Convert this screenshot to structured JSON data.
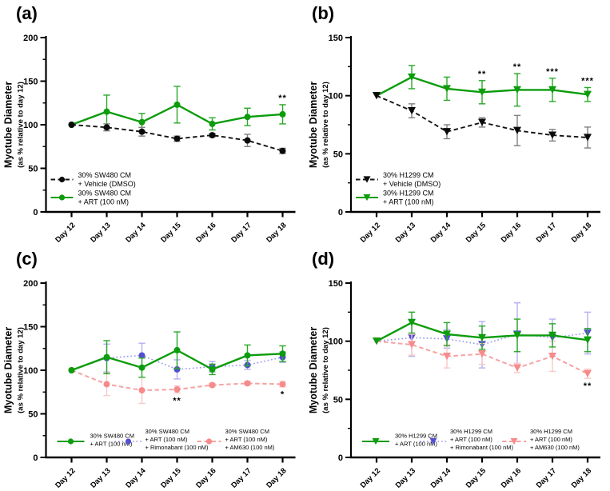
{
  "chart_data": [
    {
      "type": "line",
      "panel_label": "(a)",
      "ylabel": "Myotube Diameter",
      "ylabel_sub": "(as % relative to day 12)",
      "xlabel": "",
      "ylim": [
        0,
        200
      ],
      "yticks": [
        0,
        50,
        100,
        150,
        200
      ],
      "minor_tick_step": 25,
      "grid": false,
      "categories": [
        "Day 12",
        "Day 13",
        "Day 14",
        "Day 15",
        "Day 16",
        "Day 17",
        "Day 18"
      ],
      "legend_position": "bottom-left-stacked",
      "series": [
        {
          "name": "30% SW480 CM + Vehicle (DMSO)",
          "legend_lines": [
            "30% SW480 CM",
            "+ Vehicle (DMSO)"
          ],
          "marker": "circle",
          "line_style": "dashed",
          "color": "#0a0a0a",
          "line_color": "#141414",
          "err_color": "#7f7f7f",
          "line_width": 1.9,
          "z": 2,
          "values": [
            100,
            97,
            92,
            84,
            88,
            82,
            70
          ],
          "errors": [
            0,
            4,
            5,
            3,
            2,
            7,
            3
          ]
        },
        {
          "name": "30% SW480 CM + ART (100 nM)",
          "legend_lines": [
            "30% SW480 CM",
            "+ ART (100 nM)"
          ],
          "marker": "circle",
          "line_style": "solid",
          "color": "#0c9c0c",
          "line_color": "#0c9c0c",
          "err_color": "#2aa82a",
          "line_width": 2.4,
          "z": 1,
          "values": [
            100,
            115,
            103,
            123,
            101,
            109,
            112
          ],
          "errors": [
            0,
            19,
            10,
            21,
            7,
            10,
            11
          ]
        }
      ],
      "significance": [
        {
          "series": 1,
          "point": 6,
          "text": "**",
          "placement": "above"
        }
      ]
    },
    {
      "type": "line",
      "panel_label": "(b)",
      "ylabel": "Myotube Diameter",
      "ylabel_sub": "(as % relative to day 12)",
      "xlabel": "",
      "ylim": [
        0,
        150
      ],
      "yticks": [
        0,
        50,
        100,
        150
      ],
      "minor_tick_step": 25,
      "grid": false,
      "categories": [
        "Day 12",
        "Day 13",
        "Day 14",
        "Day 15",
        "Day 16",
        "Day 17",
        "Day 18"
      ],
      "legend_position": "bottom-left-stacked",
      "series": [
        {
          "name": "30% H1299 CM + Vehicle (DMSO)",
          "legend_lines": [
            "30% H1299 CM",
            "+ Vehicle (DMSO)"
          ],
          "marker": "triangle-down",
          "line_style": "dashed",
          "color": "#0a0a0a",
          "line_color": "#141414",
          "err_color": "#7f7f7f",
          "line_width": 1.9,
          "z": 2,
          "values": [
            100,
            87,
            69,
            77,
            70,
            66,
            64
          ],
          "errors": [
            0,
            6,
            6,
            4,
            13,
            5,
            9
          ]
        },
        {
          "name": "30% H1299 CM + ART (100 nM)",
          "legend_lines": [
            "30% H1299 CM",
            "+ ART (100 nM)"
          ],
          "marker": "triangle-down",
          "line_style": "solid",
          "color": "#0c9c0c",
          "line_color": "#0c9c0c",
          "err_color": "#2aa82a",
          "line_width": 2.4,
          "z": 1,
          "values": [
            100,
            116,
            106,
            103,
            105,
            105,
            101
          ],
          "errors": [
            0,
            10,
            10,
            10,
            14,
            10,
            6
          ]
        }
      ],
      "significance": [
        {
          "series": 1,
          "point": 3,
          "text": "**",
          "placement": "above"
        },
        {
          "series": 1,
          "point": 4,
          "text": "**",
          "placement": "above"
        },
        {
          "series": 1,
          "point": 5,
          "text": "***",
          "placement": "above"
        },
        {
          "series": 1,
          "point": 6,
          "text": "***",
          "placement": "above"
        }
      ]
    },
    {
      "type": "line",
      "panel_label": "(c)",
      "ylabel": "Myotube Diameter",
      "ylabel_sub": "(as % relative to day 12)",
      "xlabel": "",
      "ylim": [
        0,
        200
      ],
      "yticks": [
        0,
        50,
        100,
        150,
        200
      ],
      "minor_tick_step": 25,
      "grid": false,
      "categories": [
        "Day 12",
        "Day 13",
        "Day 14",
        "Day 15",
        "Day 16",
        "Day 17",
        "Day 18"
      ],
      "legend_position": "bottom-row",
      "series": [
        {
          "name": "30% SW480 CM + ART (100 nM)",
          "legend_lines": [
            "30% SW480 CM",
            "+ ART (100 nM)"
          ],
          "marker": "circle",
          "line_style": "solid",
          "color": "#0c9c0c",
          "line_color": "#0c9c0c",
          "err_color": "#2aa82a",
          "line_width": 2.4,
          "z": 3,
          "values": [
            100,
            115,
            103,
            123,
            101,
            117,
            119
          ],
          "errors": [
            0,
            19,
            11,
            21,
            6,
            12,
            9
          ]
        },
        {
          "name": "30% SW480 CM + ART (100 nM) + Rimonabant (100 nM)",
          "legend_lines": [
            "30% SW480 CM",
            "+ ART (100 nM)",
            "+ Rimonabant (100 nM)"
          ],
          "marker": "circle",
          "line_style": "dotted",
          "color": "#524fd2",
          "line_color": "#9a97ee",
          "err_color": "#b3b0f3",
          "line_width": 1.6,
          "z": 1,
          "values": [
            100,
            114,
            117,
            101,
            104,
            106,
            115
          ],
          "errors": [
            0,
            16,
            14,
            11,
            6,
            5,
            6
          ]
        },
        {
          "name": "30% SW480 CM + ART (100 nM) + AM630 (100 nM)",
          "legend_lines": [
            "30% SW480 CM",
            "+ ART (100 nM)",
            "+ AM630 (100 nM)"
          ],
          "marker": "circle",
          "line_style": "dashed",
          "color": "#f78a8a",
          "line_color": "#f6a2a2",
          "err_color": "#f9c8c8",
          "line_width": 2.0,
          "z": 2,
          "values": [
            100,
            84,
            77,
            78,
            83,
            85,
            84
          ],
          "errors": [
            0,
            13,
            15,
            4,
            2,
            2,
            3
          ]
        }
      ],
      "significance": [
        {
          "series": 2,
          "point": 3,
          "text": "**",
          "placement": "below"
        },
        {
          "series": 2,
          "point": 6,
          "text": "*",
          "placement": "below"
        }
      ]
    },
    {
      "type": "line",
      "panel_label": "(d)",
      "ylabel": "Myotube Diameter",
      "ylabel_sub": "(as % relative to day 12)",
      "xlabel": "",
      "ylim": [
        0,
        150
      ],
      "yticks": [
        0,
        50,
        100,
        150
      ],
      "minor_tick_step": 25,
      "grid": false,
      "categories": [
        "Day 12",
        "Day 13",
        "Day 14",
        "Day 15",
        "Day 16",
        "Day 17",
        "Day 18"
      ],
      "legend_position": "bottom-row",
      "series": [
        {
          "name": "30% H1299 CM + ART (100 nM)",
          "legend_lines": [
            "30% H1299 CM",
            "+ ART (100 nM)"
          ],
          "marker": "triangle-down",
          "line_style": "solid",
          "color": "#0c9c0c",
          "line_color": "#0c9c0c",
          "err_color": "#2aa82a",
          "line_width": 2.4,
          "z": 3,
          "values": [
            100,
            116,
            106,
            103,
            105,
            105,
            101
          ],
          "errors": [
            0,
            9,
            10,
            10,
            14,
            10,
            10
          ]
        },
        {
          "name": "30% H1299 CM + ART (100 nM) + Rimonabant (100 nM)",
          "legend_lines": [
            "30% H1299 CM",
            "+ ART (100 nM)",
            "+ Rimonabant (100 nM)"
          ],
          "marker": "triangle-down",
          "line_style": "dotted",
          "color": "#524fd2",
          "line_color": "#9a97ee",
          "err_color": "#b3b0f3",
          "line_width": 1.6,
          "z": 1,
          "values": [
            100,
            103,
            102,
            97,
            106,
            103,
            107
          ],
          "errors": [
            0,
            16,
            8,
            20,
            27,
            16,
            18
          ]
        },
        {
          "name": "30% H1299 CM + ART (100 nM) + AM630 (100 nM)",
          "legend_lines": [
            "30% H1299 CM",
            "+ ART (100 nM)",
            "+ AM630 (100 nM)"
          ],
          "marker": "triangle-down",
          "line_style": "dashed",
          "color": "#f78a8a",
          "line_color": "#f6a2a2",
          "err_color": "#f9c8c8",
          "line_width": 2.0,
          "z": 2,
          "values": [
            100,
            97,
            87,
            89,
            77,
            87,
            72
          ],
          "errors": [
            0,
            9,
            10,
            9,
            4,
            13,
            4
          ]
        }
      ],
      "significance": [
        {
          "series": 2,
          "point": 6,
          "text": "**",
          "placement": "below"
        }
      ]
    }
  ]
}
